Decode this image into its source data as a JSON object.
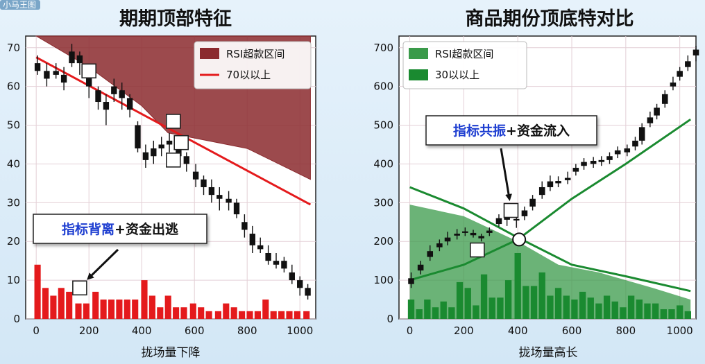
{
  "corner_badge": "小马王图",
  "chart_data": [
    {
      "type": "candlestick",
      "title": "期期顶部特征",
      "xlabel": "拢场量下降",
      "xlim": [
        -40,
        1060
      ],
      "ylim": [
        0,
        73
      ],
      "x_ticks": [
        "0",
        "200",
        "400",
        "600",
        "800",
        "1000"
      ],
      "y_ticks": [
        "0",
        "10",
        "20",
        "30",
        "40",
        "50",
        "60",
        "70"
      ],
      "grid": true,
      "legend": {
        "position": "top-right",
        "entries": [
          {
            "label": "RSI超款区间",
            "kind": "patch",
            "color": "#8b2a2e"
          },
          {
            "label": "70以以上",
            "kind": "line",
            "color": "#e41a1c"
          }
        ]
      },
      "annotation": "指标背离+资金出逃",
      "overbought_zone": {
        "upper": [
          [
            0,
            73
          ],
          [
            1040,
            73
          ]
        ],
        "lower": [
          [
            0,
            73
          ],
          [
            200,
            65
          ],
          [
            400,
            55
          ],
          [
            500,
            48
          ],
          [
            800,
            44
          ],
          [
            1040,
            36
          ]
        ],
        "color": "#8b2a2e"
      },
      "trend_line": {
        "points": [
          [
            0,
            67.5
          ],
          [
            1040,
            29.5
          ]
        ],
        "color": "#e41a1c"
      },
      "candles": [
        {
          "x": 5,
          "o": 64,
          "c": 66,
          "h": 68,
          "l": 63
        },
        {
          "x": 40,
          "o": 64,
          "c": 62,
          "h": 66,
          "l": 60
        },
        {
          "x": 75,
          "o": 63,
          "c": 64,
          "h": 66,
          "l": 62
        },
        {
          "x": 105,
          "o": 63,
          "c": 61,
          "h": 65,
          "l": 59
        },
        {
          "x": 135,
          "o": 66,
          "c": 69,
          "h": 71,
          "l": 65
        },
        {
          "x": 165,
          "o": 68,
          "c": 66,
          "h": 69,
          "l": 63
        },
        {
          "x": 200,
          "o": 63,
          "c": 60,
          "h": 64,
          "l": 57
        },
        {
          "x": 235,
          "o": 59,
          "c": 56,
          "h": 60,
          "l": 54
        },
        {
          "x": 265,
          "o": 56,
          "c": 54,
          "h": 58,
          "l": 50
        },
        {
          "x": 295,
          "o": 58,
          "c": 60,
          "h": 62,
          "l": 56
        },
        {
          "x": 325,
          "o": 59,
          "c": 57,
          "h": 61,
          "l": 54
        },
        {
          "x": 355,
          "o": 57,
          "c": 54,
          "h": 58,
          "l": 52
        },
        {
          "x": 385,
          "o": 50,
          "c": 44,
          "h": 51,
          "l": 43
        },
        {
          "x": 415,
          "o": 43,
          "c": 41,
          "h": 45,
          "l": 39
        },
        {
          "x": 445,
          "o": 42,
          "c": 44,
          "h": 46,
          "l": 40
        },
        {
          "x": 475,
          "o": 44,
          "c": 45,
          "h": 47,
          "l": 42
        },
        {
          "x": 505,
          "o": 45,
          "c": 46,
          "h": 48,
          "l": 43
        },
        {
          "x": 540,
          "o": 44,
          "c": 42,
          "h": 46,
          "l": 40
        },
        {
          "x": 570,
          "o": 42,
          "c": 40,
          "h": 43,
          "l": 38
        },
        {
          "x": 605,
          "o": 38,
          "c": 36,
          "h": 40,
          "l": 34
        },
        {
          "x": 635,
          "o": 36,
          "c": 34,
          "h": 37,
          "l": 32
        },
        {
          "x": 665,
          "o": 34,
          "c": 32,
          "h": 36,
          "l": 30
        },
        {
          "x": 695,
          "o": 32,
          "c": 31,
          "h": 34,
          "l": 28
        },
        {
          "x": 730,
          "o": 31,
          "c": 30,
          "h": 33,
          "l": 28
        },
        {
          "x": 760,
          "o": 30,
          "c": 27,
          "h": 31,
          "l": 26
        },
        {
          "x": 790,
          "o": 25,
          "c": 23,
          "h": 27,
          "l": 21
        },
        {
          "x": 820,
          "o": 22,
          "c": 19,
          "h": 24,
          "l": 17
        },
        {
          "x": 850,
          "o": 19,
          "c": 18,
          "h": 21,
          "l": 17
        },
        {
          "x": 880,
          "o": 17,
          "c": 15,
          "h": 19,
          "l": 14
        },
        {
          "x": 910,
          "o": 15,
          "c": 14,
          "h": 17,
          "l": 13
        },
        {
          "x": 940,
          "o": 15,
          "c": 13,
          "h": 16,
          "l": 12
        },
        {
          "x": 970,
          "o": 12,
          "c": 10,
          "h": 14,
          "l": 9
        },
        {
          "x": 1000,
          "o": 10,
          "c": 8,
          "h": 11,
          "l": 6
        },
        {
          "x": 1030,
          "o": 8,
          "c": 6,
          "h": 9,
          "l": 5
        }
      ],
      "markers": [
        [
          200,
          64
        ],
        [
          520,
          51
        ],
        [
          550,
          45.5
        ],
        [
          520,
          41
        ],
        [
          165,
          8
        ]
      ],
      "volume_color": "#e41a1c",
      "volume": [
        {
          "x": 5,
          "v": 14
        },
        {
          "x": 35,
          "v": 8
        },
        {
          "x": 65,
          "v": 6
        },
        {
          "x": 95,
          "v": 8
        },
        {
          "x": 125,
          "v": 7
        },
        {
          "x": 160,
          "v": 4
        },
        {
          "x": 190,
          "v": 4
        },
        {
          "x": 225,
          "v": 7
        },
        {
          "x": 255,
          "v": 5
        },
        {
          "x": 285,
          "v": 5
        },
        {
          "x": 315,
          "v": 5
        },
        {
          "x": 345,
          "v": 5
        },
        {
          "x": 375,
          "v": 5
        },
        {
          "x": 410,
          "v": 10
        },
        {
          "x": 440,
          "v": 6
        },
        {
          "x": 470,
          "v": 3
        },
        {
          "x": 500,
          "v": 6
        },
        {
          "x": 530,
          "v": 3
        },
        {
          "x": 560,
          "v": 3
        },
        {
          "x": 595,
          "v": 4
        },
        {
          "x": 625,
          "v": 3
        },
        {
          "x": 655,
          "v": 2
        },
        {
          "x": 690,
          "v": 2
        },
        {
          "x": 720,
          "v": 4
        },
        {
          "x": 750,
          "v": 3
        },
        {
          "x": 780,
          "v": 2
        },
        {
          "x": 810,
          "v": 2
        },
        {
          "x": 840,
          "v": 2
        },
        {
          "x": 870,
          "v": 5
        },
        {
          "x": 900,
          "v": 2
        },
        {
          "x": 930,
          "v": 2
        },
        {
          "x": 960,
          "v": 2
        },
        {
          "x": 990,
          "v": 2
        },
        {
          "x": 1025,
          "v": 2
        }
      ]
    },
    {
      "type": "candlestick",
      "title": "商品期份顶底特对比",
      "xlabel": "拢场量高长",
      "xlim": [
        -40,
        1060
      ],
      "ylim": [
        0,
        730
      ],
      "x_ticks": [
        "0",
        "200",
        "400",
        "600",
        "800",
        "1000"
      ],
      "y_ticks": [
        "0",
        "100",
        "200",
        "300",
        "400",
        "500",
        "600",
        "700"
      ],
      "grid": true,
      "legend": {
        "position": "top-left",
        "entries": [
          {
            "label": "RSI超款区间",
            "kind": "patch",
            "color": "#3a9a4a"
          },
          {
            "label": "30以以上",
            "kind": "patch",
            "color": "#1a8a30"
          }
        ]
      },
      "annotation": "指标共振+资金流入",
      "oversold_zone": {
        "upper": [
          [
            0,
            295
          ],
          [
            200,
            265
          ],
          [
            400,
            200
          ],
          [
            550,
            140
          ],
          [
            700,
            120
          ],
          [
            900,
            80
          ],
          [
            1040,
            50
          ]
        ],
        "lower": [
          [
            0,
            0
          ],
          [
            1040,
            0
          ]
        ],
        "color": "#3a9a4a"
      },
      "declining_line": {
        "points": [
          [
            0,
            340
          ],
          [
            200,
            285
          ],
          [
            400,
            210
          ],
          [
            600,
            140
          ],
          [
            800,
            110
          ],
          [
            1040,
            72
          ]
        ],
        "color": "#1a8a30"
      },
      "rising_line": {
        "points": [
          [
            0,
            100
          ],
          [
            200,
            140
          ],
          [
            400,
            205
          ],
          [
            600,
            310
          ],
          [
            800,
            400
          ],
          [
            1040,
            515
          ]
        ],
        "color": "#1a8a30"
      },
      "crossing_point": [
        405,
        205
      ],
      "candles": [
        {
          "x": 5,
          "o": 90,
          "c": 105,
          "h": 120,
          "l": 80
        },
        {
          "x": 40,
          "o": 125,
          "c": 140,
          "h": 150,
          "l": 115
        },
        {
          "x": 75,
          "o": 160,
          "c": 175,
          "h": 190,
          "l": 150
        },
        {
          "x": 110,
          "o": 185,
          "c": 195,
          "h": 205,
          "l": 175
        },
        {
          "x": 140,
          "o": 200,
          "c": 210,
          "h": 225,
          "l": 190
        },
        {
          "x": 175,
          "o": 215,
          "c": 220,
          "h": 232,
          "l": 205
        },
        {
          "x": 205,
          "o": 222,
          "c": 226,
          "h": 236,
          "l": 214
        },
        {
          "x": 235,
          "o": 222,
          "c": 216,
          "h": 230,
          "l": 210
        },
        {
          "x": 265,
          "o": 214,
          "c": 208,
          "h": 220,
          "l": 200
        },
        {
          "x": 295,
          "o": 222,
          "c": 228,
          "h": 236,
          "l": 214
        },
        {
          "x": 330,
          "o": 245,
          "c": 260,
          "h": 270,
          "l": 238
        },
        {
          "x": 360,
          "o": 256,
          "c": 262,
          "h": 275,
          "l": 240
        },
        {
          "x": 395,
          "o": 258,
          "c": 254,
          "h": 270,
          "l": 235
        },
        {
          "x": 425,
          "o": 265,
          "c": 280,
          "h": 290,
          "l": 255
        },
        {
          "x": 455,
          "o": 290,
          "c": 310,
          "h": 320,
          "l": 280
        },
        {
          "x": 490,
          "o": 320,
          "c": 340,
          "h": 355,
          "l": 310
        },
        {
          "x": 520,
          "o": 340,
          "c": 355,
          "h": 370,
          "l": 330
        },
        {
          "x": 550,
          "o": 350,
          "c": 356,
          "h": 368,
          "l": 340
        },
        {
          "x": 585,
          "o": 358,
          "c": 364,
          "h": 380,
          "l": 348
        },
        {
          "x": 615,
          "o": 380,
          "c": 390,
          "h": 400,
          "l": 370
        },
        {
          "x": 645,
          "o": 395,
          "c": 405,
          "h": 415,
          "l": 385
        },
        {
          "x": 680,
          "o": 400,
          "c": 408,
          "h": 418,
          "l": 390
        },
        {
          "x": 710,
          "o": 405,
          "c": 410,
          "h": 420,
          "l": 395
        },
        {
          "x": 740,
          "o": 410,
          "c": 420,
          "h": 430,
          "l": 400
        },
        {
          "x": 770,
          "o": 425,
          "c": 435,
          "h": 445,
          "l": 415
        },
        {
          "x": 805,
          "o": 430,
          "c": 440,
          "h": 450,
          "l": 420
        },
        {
          "x": 835,
          "o": 445,
          "c": 460,
          "h": 470,
          "l": 435
        },
        {
          "x": 860,
          "o": 460,
          "c": 495,
          "h": 505,
          "l": 450
        },
        {
          "x": 890,
          "o": 505,
          "c": 520,
          "h": 535,
          "l": 495
        },
        {
          "x": 915,
          "o": 525,
          "c": 545,
          "h": 555,
          "l": 515
        },
        {
          "x": 945,
          "o": 555,
          "c": 580,
          "h": 590,
          "l": 545
        },
        {
          "x": 975,
          "o": 600,
          "c": 610,
          "h": 625,
          "l": 590
        },
        {
          "x": 1000,
          "o": 625,
          "c": 640,
          "h": 650,
          "l": 615
        },
        {
          "x": 1030,
          "o": 650,
          "c": 665,
          "h": 680,
          "l": 640
        },
        {
          "x": 1060,
          "o": 680,
          "c": 695,
          "h": 705,
          "l": 665
        }
      ],
      "markers": [
        [
          375,
          280
        ],
        [
          250,
          178
        ]
      ],
      "volume_color": "#1a8a30",
      "volume": [
        {
          "x": 5,
          "v": 50
        },
        {
          "x": 35,
          "v": 25
        },
        {
          "x": 65,
          "v": 50
        },
        {
          "x": 95,
          "v": 30
        },
        {
          "x": 125,
          "v": 45
        },
        {
          "x": 155,
          "v": 30
        },
        {
          "x": 185,
          "v": 95
        },
        {
          "x": 215,
          "v": 80
        },
        {
          "x": 245,
          "v": 35
        },
        {
          "x": 275,
          "v": 115
        },
        {
          "x": 305,
          "v": 55
        },
        {
          "x": 335,
          "v": 55
        },
        {
          "x": 365,
          "v": 100
        },
        {
          "x": 400,
          "v": 170
        },
        {
          "x": 430,
          "v": 85
        },
        {
          "x": 460,
          "v": 85
        },
        {
          "x": 490,
          "v": 120
        },
        {
          "x": 520,
          "v": 60
        },
        {
          "x": 550,
          "v": 80
        },
        {
          "x": 580,
          "v": 60
        },
        {
          "x": 610,
          "v": 50
        },
        {
          "x": 640,
          "v": 70
        },
        {
          "x": 670,
          "v": 55
        },
        {
          "x": 700,
          "v": 40
        },
        {
          "x": 730,
          "v": 60
        },
        {
          "x": 760,
          "v": 45
        },
        {
          "x": 790,
          "v": 30
        },
        {
          "x": 820,
          "v": 60
        },
        {
          "x": 850,
          "v": 50
        },
        {
          "x": 880,
          "v": 40
        },
        {
          "x": 910,
          "v": 40
        },
        {
          "x": 940,
          "v": 25
        },
        {
          "x": 970,
          "v": 25
        },
        {
          "x": 1000,
          "v": 35
        },
        {
          "x": 1030,
          "v": 20
        }
      ]
    }
  ]
}
